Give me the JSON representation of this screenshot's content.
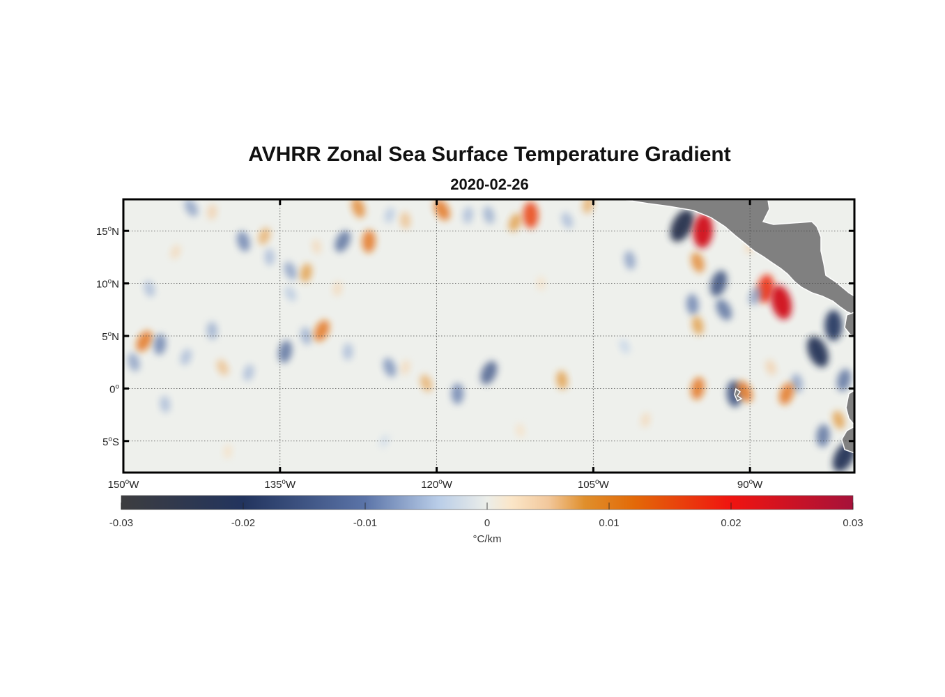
{
  "title": "AVHRR Zonal Sea Surface Temperature Gradient",
  "subtitle": "2020-02-26",
  "map": {
    "lon_range": [
      -150,
      -80
    ],
    "lat_range": [
      -8,
      18
    ],
    "lon_ticks": [
      {
        "value": -150,
        "deg": "150",
        "hemi": "W"
      },
      {
        "value": -135,
        "deg": "135",
        "hemi": "W"
      },
      {
        "value": -120,
        "deg": "120",
        "hemi": "W"
      },
      {
        "value": -105,
        "deg": "105",
        "hemi": "W"
      },
      {
        "value": -90,
        "deg": "90",
        "hemi": "W"
      }
    ],
    "lat_ticks": [
      {
        "value": 15,
        "deg": "15",
        "hemi": "N"
      },
      {
        "value": 10,
        "deg": "10",
        "hemi": "N"
      },
      {
        "value": 5,
        "deg": "5",
        "hemi": "N"
      },
      {
        "value": 0,
        "deg": "0",
        "hemi": ""
      },
      {
        "value": -5,
        "deg": "5",
        "hemi": "S"
      }
    ],
    "grid": true,
    "land_color": "#808080",
    "features": [
      {
        "lon": -143.5,
        "lat": 17.2,
        "v": -0.008
      },
      {
        "lon": -141.5,
        "lat": 16.8,
        "v": 0.005
      },
      {
        "lon": -138.5,
        "lat": 14.0,
        "v": -0.01
      },
      {
        "lon": -136.5,
        "lat": 14.5,
        "v": 0.007
      },
      {
        "lon": -136.0,
        "lat": 12.5,
        "v": -0.006
      },
      {
        "lon": -134.0,
        "lat": 11.2,
        "v": -0.008
      },
      {
        "lon": -132.5,
        "lat": 11.0,
        "v": 0.008
      },
      {
        "lon": -131.5,
        "lat": 13.5,
        "v": 0.004
      },
      {
        "lon": -129.0,
        "lat": 14.0,
        "v": -0.012
      },
      {
        "lon": -126.5,
        "lat": 14.0,
        "v": 0.012
      },
      {
        "lon": -127.5,
        "lat": 17.2,
        "v": 0.01
      },
      {
        "lon": -124.5,
        "lat": 16.5,
        "v": -0.005
      },
      {
        "lon": -123.0,
        "lat": 16.0,
        "v": 0.006
      },
      {
        "lon": -119.5,
        "lat": 17.0,
        "v": 0.012
      },
      {
        "lon": -117.0,
        "lat": 16.5,
        "v": -0.006
      },
      {
        "lon": -115.0,
        "lat": 16.5,
        "v": -0.007
      },
      {
        "lon": -112.5,
        "lat": 15.8,
        "v": 0.008
      },
      {
        "lon": -111.0,
        "lat": 16.5,
        "v": 0.016
      },
      {
        "lon": -107.5,
        "lat": 16.0,
        "v": -0.006
      },
      {
        "lon": -105.5,
        "lat": 17.5,
        "v": 0.007
      },
      {
        "lon": -101.5,
        "lat": 12.2,
        "v": -0.008
      },
      {
        "lon": -96.5,
        "lat": 15.5,
        "v": -0.024
      },
      {
        "lon": -94.5,
        "lat": 15.0,
        "v": 0.024
      },
      {
        "lon": -95.0,
        "lat": 12.0,
        "v": 0.01
      },
      {
        "lon": -93.0,
        "lat": 10.0,
        "v": -0.016
      },
      {
        "lon": -95.5,
        "lat": 8.0,
        "v": -0.01
      },
      {
        "lon": -92.5,
        "lat": 7.5,
        "v": -0.012
      },
      {
        "lon": -88.5,
        "lat": 9.5,
        "v": 0.018
      },
      {
        "lon": -87.0,
        "lat": 8.2,
        "v": 0.024
      },
      {
        "lon": -89.5,
        "lat": 8.8,
        "v": -0.008
      },
      {
        "lon": -82.0,
        "lat": 6.0,
        "v": -0.02
      },
      {
        "lon": -83.5,
        "lat": 3.5,
        "v": -0.022
      },
      {
        "lon": -81.0,
        "lat": 0.8,
        "v": -0.012
      },
      {
        "lon": -85.5,
        "lat": 0.5,
        "v": -0.008
      },
      {
        "lon": -81.0,
        "lat": -6.5,
        "v": -0.022
      },
      {
        "lon": -83.0,
        "lat": -4.5,
        "v": -0.012
      },
      {
        "lon": -81.5,
        "lat": -3.0,
        "v": 0.008
      },
      {
        "lon": -86.5,
        "lat": -0.5,
        "v": 0.012
      },
      {
        "lon": -91.5,
        "lat": -0.5,
        "v": -0.016
      },
      {
        "lon": -90.5,
        "lat": -0.3,
        "v": 0.012
      },
      {
        "lon": -95.0,
        "lat": 0.0,
        "v": 0.012
      },
      {
        "lon": -95.0,
        "lat": 6.0,
        "v": 0.008
      },
      {
        "lon": -115.0,
        "lat": 1.5,
        "v": -0.014
      },
      {
        "lon": -118.0,
        "lat": -0.5,
        "v": -0.01
      },
      {
        "lon": -121.0,
        "lat": 0.5,
        "v": 0.007
      },
      {
        "lon": -123.0,
        "lat": 2.0,
        "v": 0.004
      },
      {
        "lon": -108.0,
        "lat": 0.8,
        "v": 0.008
      },
      {
        "lon": -148.0,
        "lat": 4.5,
        "v": 0.012
      },
      {
        "lon": -146.5,
        "lat": 4.2,
        "v": -0.01
      },
      {
        "lon": -149.0,
        "lat": 2.5,
        "v": -0.008
      },
      {
        "lon": -144.0,
        "lat": 3.0,
        "v": -0.006
      },
      {
        "lon": -141.5,
        "lat": 5.5,
        "v": -0.007
      },
      {
        "lon": -140.5,
        "lat": 2.0,
        "v": 0.006
      },
      {
        "lon": -134.5,
        "lat": 3.5,
        "v": -0.012
      },
      {
        "lon": -132.5,
        "lat": 5.0,
        "v": -0.007
      },
      {
        "lon": -131.0,
        "lat": 5.5,
        "v": 0.012
      },
      {
        "lon": -128.5,
        "lat": 3.5,
        "v": -0.006
      },
      {
        "lon": -124.5,
        "lat": 2.0,
        "v": -0.009
      },
      {
        "lon": -138.0,
        "lat": 1.5,
        "v": -0.006
      },
      {
        "lon": -146.0,
        "lat": -1.5,
        "v": -0.006
      },
      {
        "lon": -134.0,
        "lat": 9.0,
        "v": -0.005
      },
      {
        "lon": -129.5,
        "lat": 9.5,
        "v": 0.004
      },
      {
        "lon": -147.5,
        "lat": 9.5,
        "v": -0.006
      },
      {
        "lon": -145.0,
        "lat": 13.0,
        "v": 0.004
      },
      {
        "lon": -110.0,
        "lat": 10.0,
        "v": 0.003
      },
      {
        "lon": -102.0,
        "lat": 4.0,
        "v": -0.004
      },
      {
        "lon": -100.0,
        "lat": -3.0,
        "v": 0.004
      },
      {
        "lon": -112.0,
        "lat": -4.0,
        "v": 0.003
      },
      {
        "lon": -125.0,
        "lat": -5.0,
        "v": -0.003
      },
      {
        "lon": -140.0,
        "lat": -6.0,
        "v": 0.003
      },
      {
        "lon": -88.0,
        "lat": 2.0,
        "v": 0.005
      },
      {
        "lon": -90.0,
        "lat": 13.5,
        "v": 0.004
      }
    ]
  },
  "colorbar": {
    "vmin": -0.03,
    "vmax": 0.03,
    "ticks": [
      {
        "value": -0.03,
        "label": "-0.03"
      },
      {
        "value": -0.02,
        "label": "-0.02"
      },
      {
        "value": -0.01,
        "label": "-0.01"
      },
      {
        "value": 0,
        "label": "0"
      },
      {
        "value": 0.01,
        "label": "0.01"
      },
      {
        "value": 0.02,
        "label": "0.02"
      },
      {
        "value": 0.03,
        "label": "0.03"
      }
    ],
    "unit_label": "°C/km",
    "colors": [
      {
        "v": -0.03,
        "c": "#3d3d3f"
      },
      {
        "v": -0.02,
        "c": "#22345e"
      },
      {
        "v": -0.01,
        "c": "#5b74a8"
      },
      {
        "v": -0.004,
        "c": "#b9cde8"
      },
      {
        "v": 0.0,
        "c": "#eceee9"
      },
      {
        "v": 0.002,
        "c": "#fbe6c8"
      },
      {
        "v": 0.005,
        "c": "#f2c89c"
      },
      {
        "v": 0.008,
        "c": "#e08f2c"
      },
      {
        "v": 0.012,
        "c": "#e36a08"
      },
      {
        "v": 0.02,
        "c": "#f01410"
      },
      {
        "v": 0.03,
        "c": "#a6123a"
      }
    ]
  }
}
